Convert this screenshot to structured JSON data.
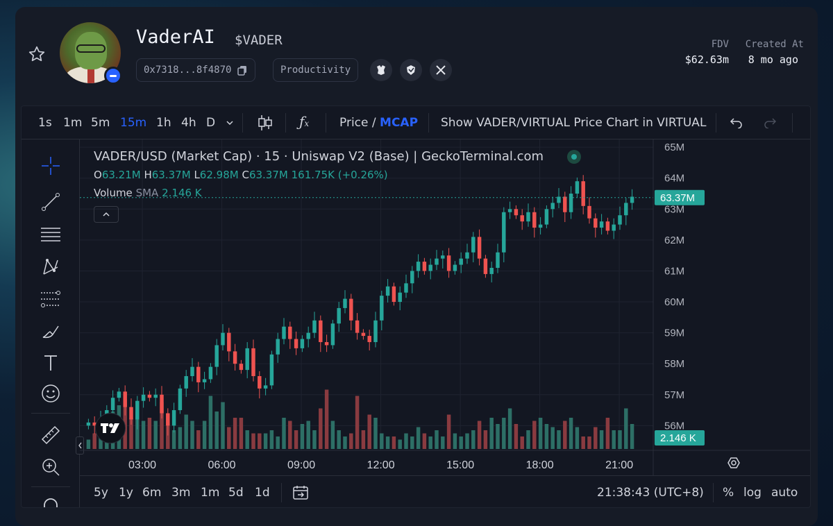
{
  "header": {
    "token_name": "VaderAI",
    "token_symbol": "$VADER",
    "address": "0x7318...8f4870",
    "category": "Productivity",
    "stats": [
      {
        "label": "FDV",
        "value": "$62.63m"
      },
      {
        "label": "Created At",
        "value": "8 mo ago"
      }
    ]
  },
  "toolbar": {
    "intervals": [
      "1s",
      "1m",
      "5m",
      "15m",
      "1h",
      "4h",
      "D"
    ],
    "active_interval": "15m",
    "price_label": "Price",
    "separator": "/",
    "mcap_label": "MCAP",
    "show_pair": "Show VADER/VIRTUAL Price Chart in VIRTUAL"
  },
  "legend": {
    "title": "VADER/USD (Market Cap) · 15 · Uniswap V2 (Base) | GeckoTerminal.com",
    "o_key": "O",
    "o_val": "63.21M",
    "h_key": "H",
    "h_val": "63.37M",
    "l_key": "L",
    "l_val": "62.98M",
    "c_key": "C",
    "c_val": "63.37M",
    "change": "161.75K (+0.26%)",
    "volume_label": "Volume",
    "sma_label": "SMA",
    "volume_value": "2.146 K"
  },
  "bottombar": {
    "ranges": [
      "5y",
      "1y",
      "6m",
      "3m",
      "1m",
      "5d",
      "1d"
    ],
    "time": "21:38:43 (UTC+8)",
    "percent": "%",
    "log": "log",
    "auto": "auto"
  },
  "colors": {
    "up": "#26a69a",
    "down": "#ef5350",
    "accent": "#2962ff",
    "up_volume": "#2d6f66",
    "down_volume": "#8a3b40"
  },
  "chart_data": {
    "type": "candlestick",
    "y_axis_ticks": [
      "65M",
      "64M",
      "63M",
      "62M",
      "61M",
      "60M",
      "59M",
      "58M",
      "57M",
      "56M"
    ],
    "y_axis_values": [
      65,
      64,
      63,
      62,
      61,
      60,
      59,
      58,
      57,
      56
    ],
    "ylim": [
      55.2,
      65.25
    ],
    "x_axis_ticks": [
      "03:00",
      "06:00",
      "09:00",
      "12:00",
      "15:00",
      "18:00",
      "21:00"
    ],
    "x_axis_hours": [
      3,
      6,
      9,
      12,
      15,
      18,
      21
    ],
    "x_start_hour": 0.85,
    "x_end_hour": 21.6,
    "last_price_label": "63.37M",
    "last_price_value": 63.37,
    "last_volume_label": "2.146 K",
    "closes": [
      56.1,
      56.0,
      56.2,
      56.5,
      56.9,
      57.1,
      56.6,
      56.2,
      56.8,
      57.0,
      56.9,
      57.0,
      56.4,
      56.0,
      56.5,
      57.2,
      57.6,
      57.9,
      57.4,
      57.5,
      57.9,
      58.6,
      59.0,
      58.4,
      58.0,
      57.8,
      58.5,
      57.6,
      57.2,
      57.3,
      58.3,
      58.8,
      59.2,
      58.8,
      58.5,
      58.8,
      59.0,
      59.4,
      58.7,
      58.6,
      59.3,
      59.8,
      60.1,
      59.4,
      59.0,
      58.9,
      58.7,
      59.4,
      60.2,
      60.5,
      60.0,
      60.3,
      60.6,
      61.0,
      61.3,
      61.0,
      61.2,
      61.4,
      61.5,
      61.0,
      61.2,
      61.4,
      61.6,
      62.1,
      61.4,
      60.9,
      61.1,
      61.6,
      62.9,
      63.0,
      62.8,
      62.6,
      62.9,
      62.4,
      62.5,
      63.0,
      63.2,
      63.4,
      62.9,
      63.5,
      63.9,
      63.1,
      62.7,
      62.4,
      62.6,
      62.3,
      62.5,
      62.8,
      63.2,
      63.4
    ],
    "volumes": [
      0.15,
      0.25,
      0.2,
      0.3,
      0.6,
      0.7,
      0.8,
      0.5,
      0.6,
      0.45,
      0.5,
      0.45,
      0.75,
      0.55,
      0.3,
      0.35,
      0.55,
      0.45,
      0.3,
      0.45,
      0.85,
      0.6,
      0.75,
      0.35,
      0.5,
      0.5,
      0.3,
      0.25,
      0.25,
      0.25,
      0.3,
      0.2,
      0.5,
      0.45,
      0.3,
      0.4,
      0.45,
      0.3,
      0.65,
      0.95,
      0.45,
      0.3,
      0.2,
      0.25,
      0.85,
      0.3,
      0.55,
      0.5,
      0.25,
      0.2,
      0.2,
      0.15,
      0.25,
      0.2,
      0.35,
      0.25,
      0.2,
      0.3,
      0.2,
      0.55,
      0.25,
      0.2,
      0.25,
      0.3,
      0.45,
      0.3,
      0.5,
      0.4,
      0.5,
      0.65,
      0.4,
      0.2,
      0.3,
      0.45,
      0.5,
      0.4,
      0.35,
      0.3,
      0.45,
      0.5,
      0.35,
      0.2,
      0.2,
      0.35,
      0.3,
      0.5,
      0.3,
      0.3,
      0.65,
      0.4
    ]
  }
}
